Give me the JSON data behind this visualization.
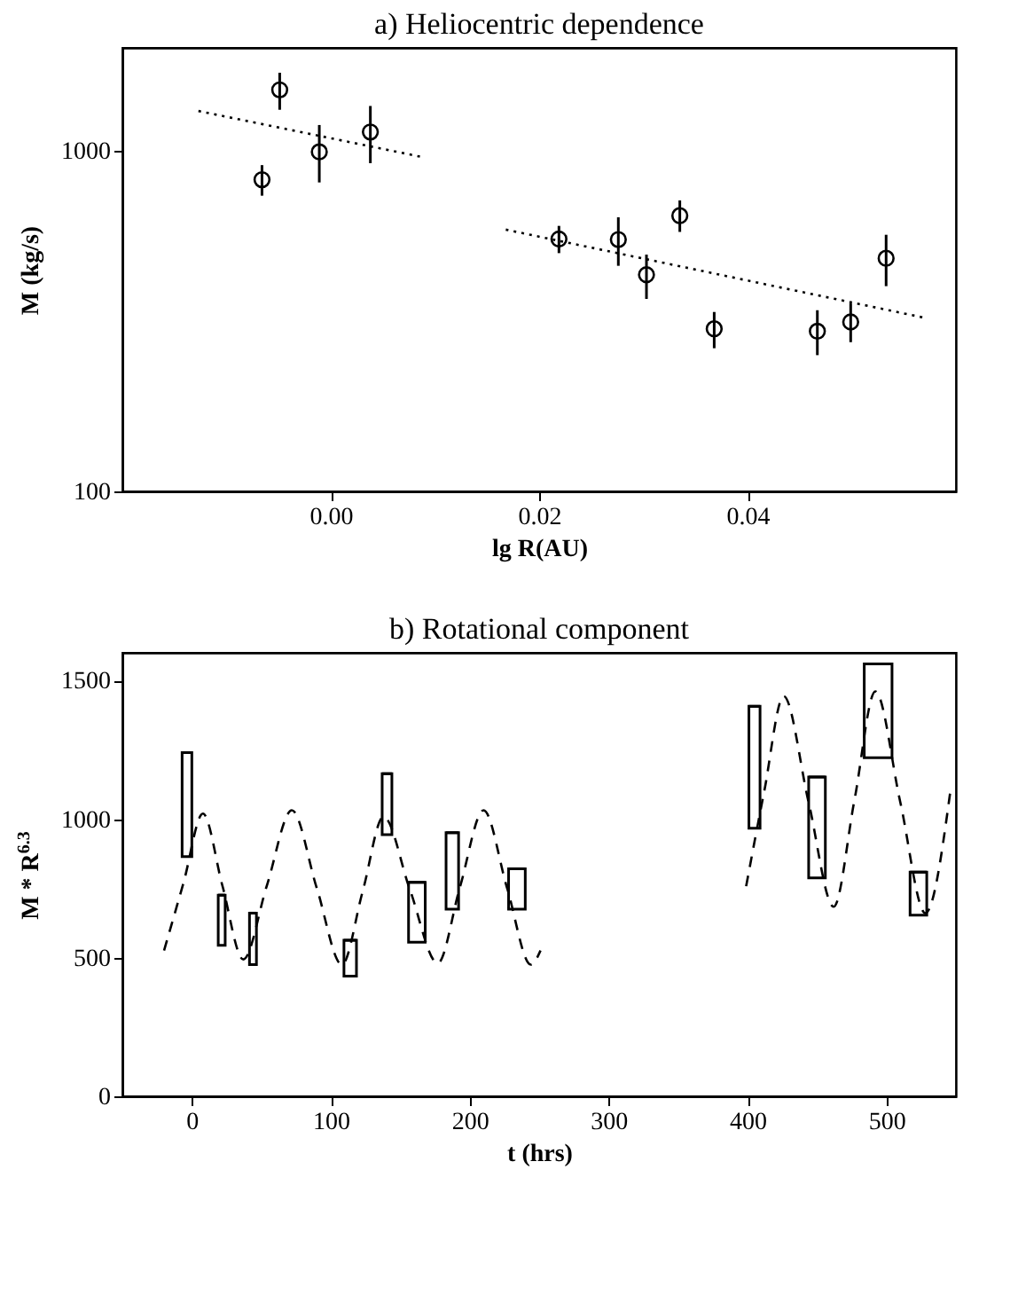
{
  "chart_data": [
    {
      "type": "scatter",
      "title": "a) Heliocentric dependence",
      "xlabel": "lg R(AU)",
      "ylabel": "M (kg/s)",
      "log": "y",
      "grid": false,
      "xlim": [
        -0.02,
        0.06
      ],
      "xticks": [
        {
          "value": 0,
          "label": "0.00"
        },
        {
          "value": 0.02,
          "label": "0.02"
        },
        {
          "value": 0.04,
          "label": "0.04"
        }
      ],
      "ylim": [
        100,
        2000
      ],
      "yticks": [
        100,
        1000
      ],
      "series": [
        {
          "color": "#000000",
          "marker": "circle",
          "x": [
            -0.0066,
            -0.0049,
            -0.0011,
            0.0038,
            0.0219,
            0.0276,
            0.0303,
            0.0335,
            0.0368,
            0.0467,
            0.0499,
            0.0533
          ],
          "values": [
            821,
            1506,
            991,
            1133,
            550,
            548,
            432,
            644,
            300,
            295,
            314,
            483
          ],
          "errors": [
            [
              737,
              906
            ],
            [
              1317,
              1691
            ],
            [
              806,
              1188
            ],
            [
              918,
              1351
            ],
            [
              500,
              601
            ],
            [
              459,
              637
            ],
            [
              367,
              495
            ],
            [
              577,
              714
            ],
            [
              263,
              336
            ],
            [
              251,
              340
            ],
            [
              274,
              356
            ],
            [
              400,
              566
            ]
          ]
        },
        {
          "type": "line",
          "color": "#000000",
          "line_style": "dotted",
          "x": [
            -0.0127,
            0.0087
          ],
          "values": [
            1306,
            958
          ]
        },
        {
          "type": "line",
          "color": "#000000",
          "line_style": "dotted",
          "x": [
            0.0168,
            0.0568
          ],
          "values": [
            586,
            324
          ]
        }
      ]
    },
    {
      "type": "bar",
      "title": "b) Rotational component",
      "xlabel": "t (hrs)",
      "ylabel": "M * R$^{6.3}$",
      "grid": false,
      "xlim": [
        -50,
        550
      ],
      "xticks": [
        0,
        100,
        200,
        300,
        400,
        500
      ],
      "ylim": [
        0,
        1600
      ],
      "yticks": [
        0,
        500,
        1000,
        1500
      ],
      "series": [
        {
          "color": "#000000",
          "x": [
            -3.5,
            21.5,
            44,
            114,
            140.5,
            162,
            187.5,
            234,
            405,
            450,
            494,
            523
          ],
          "base": [
            865,
            545,
            475,
            434,
            944,
            556,
            675,
            675,
            967,
            788,
            1222,
            654
          ],
          "values": [
            375,
            181,
            186,
            129,
            220,
            216,
            276,
            146,
            440,
            364,
            338,
            155
          ],
          "xerrors": [
            [
              -7,
              0
            ],
            [
              19,
              24
            ],
            [
              41.5,
              46.5
            ],
            [
              110,
              119
            ],
            [
              137,
              144
            ],
            [
              156,
              168
            ],
            [
              183,
              192
            ],
            [
              228,
              240
            ],
            [
              401,
              409
            ],
            [
              444,
              456
            ],
            [
              484,
              504
            ],
            [
              517,
              529
            ]
          ]
        },
        {
          "type": "line",
          "color": "#000000",
          "line_style": "dashed",
          "x": [
            -20,
            -6,
            8,
            22,
            37,
            54,
            72,
            90,
            108,
            123,
            138,
            157,
            177,
            193,
            210,
            227,
            244,
            251
          ],
          "values": [
            526,
            770,
            1020,
            760,
            494,
            760,
            1032,
            750,
            475,
            740,
            1009,
            745,
            480,
            755,
            1032,
            750,
            475,
            526
          ]
        },
        {
          "type": "line",
          "color": "#000000",
          "line_style": "dashed",
          "x": [
            399,
            412,
            426,
            444,
            462,
            477,
            492,
            510,
            528,
            546
          ],
          "values": [
            758,
            1100,
            1444,
            1060,
            684,
            1070,
            1461,
            1060,
            661,
            1101
          ]
        }
      ]
    }
  ]
}
